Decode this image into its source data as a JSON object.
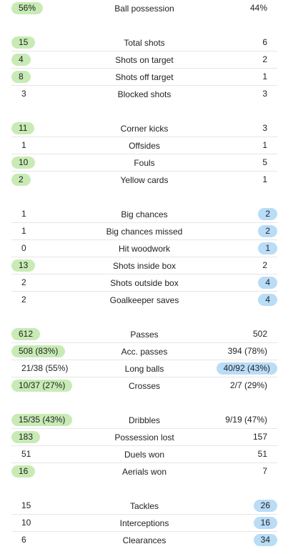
{
  "colors": {
    "home_highlight": "#c8ebb5",
    "away_highlight": "#b9dcf7"
  },
  "groups": [
    {
      "rows": [
        {
          "label": "Ball possession",
          "home": "56%",
          "away": "44%",
          "hl": "home"
        }
      ]
    },
    {
      "rows": [
        {
          "label": "Total shots",
          "home": "15",
          "away": "6",
          "hl": "home"
        },
        {
          "label": "Shots on target",
          "home": "4",
          "away": "2",
          "hl": "home"
        },
        {
          "label": "Shots off target",
          "home": "8",
          "away": "1",
          "hl": "home"
        },
        {
          "label": "Blocked shots",
          "home": "3",
          "away": "3",
          "hl": "none"
        }
      ]
    },
    {
      "rows": [
        {
          "label": "Corner kicks",
          "home": "11",
          "away": "3",
          "hl": "home"
        },
        {
          "label": "Offsides",
          "home": "1",
          "away": "1",
          "hl": "none"
        },
        {
          "label": "Fouls",
          "home": "10",
          "away": "5",
          "hl": "home"
        },
        {
          "label": "Yellow cards",
          "home": "2",
          "away": "1",
          "hl": "home"
        }
      ]
    },
    {
      "rows": [
        {
          "label": "Big chances",
          "home": "1",
          "away": "2",
          "hl": "away"
        },
        {
          "label": "Big chances missed",
          "home": "1",
          "away": "2",
          "hl": "away"
        },
        {
          "label": "Hit woodwork",
          "home": "0",
          "away": "1",
          "hl": "away"
        },
        {
          "label": "Shots inside box",
          "home": "13",
          "away": "2",
          "hl": "home"
        },
        {
          "label": "Shots outside box",
          "home": "2",
          "away": "4",
          "hl": "away"
        },
        {
          "label": "Goalkeeper saves",
          "home": "2",
          "away": "4",
          "hl": "away"
        }
      ]
    },
    {
      "rows": [
        {
          "label": "Passes",
          "home": "612",
          "away": "502",
          "hl": "home"
        },
        {
          "label": "Acc. passes",
          "home": "508 (83%)",
          "away": "394 (78%)",
          "hl": "home"
        },
        {
          "label": "Long balls",
          "home": "21/38 (55%)",
          "away": "40/92 (43%)",
          "hl": "away"
        },
        {
          "label": "Crosses",
          "home": "10/37 (27%)",
          "away": "2/7 (29%)",
          "hl": "home"
        }
      ]
    },
    {
      "rows": [
        {
          "label": "Dribbles",
          "home": "15/35 (43%)",
          "away": "9/19 (47%)",
          "hl": "home"
        },
        {
          "label": "Possession lost",
          "home": "183",
          "away": "157",
          "hl": "home"
        },
        {
          "label": "Duels won",
          "home": "51",
          "away": "51",
          "hl": "none"
        },
        {
          "label": "Aerials won",
          "home": "16",
          "away": "7",
          "hl": "home"
        }
      ]
    },
    {
      "rows": [
        {
          "label": "Tackles",
          "home": "15",
          "away": "26",
          "hl": "away"
        },
        {
          "label": "Interceptions",
          "home": "10",
          "away": "16",
          "hl": "away"
        },
        {
          "label": "Clearances",
          "home": "6",
          "away": "34",
          "hl": "away"
        }
      ]
    }
  ]
}
